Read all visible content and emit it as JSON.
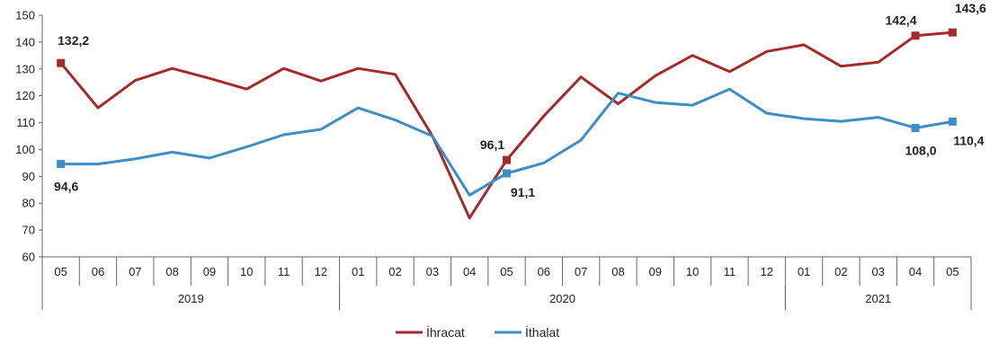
{
  "chart_data": {
    "type": "line",
    "categories": [
      "05",
      "06",
      "07",
      "08",
      "09",
      "10",
      "11",
      "12",
      "01",
      "02",
      "03",
      "04",
      "05",
      "06",
      "07",
      "08",
      "09",
      "10",
      "11",
      "12",
      "01",
      "02",
      "03",
      "04",
      "05"
    ],
    "years": [
      {
        "label": "2019",
        "from": 0,
        "to": 7
      },
      {
        "label": "2020",
        "from": 8,
        "to": 19
      },
      {
        "label": "2021",
        "from": 20,
        "to": 24
      }
    ],
    "series": [
      {
        "name": "İhracat",
        "color": "#a52a2a",
        "values": [
          132.2,
          115.5,
          125.7,
          130.2,
          126.5,
          122.5,
          130.2,
          125.5,
          130.2,
          128.0,
          105.0,
          74.5,
          96.1,
          112.5,
          127.0,
          117.0,
          127.5,
          135.0,
          129.0,
          136.5,
          139.0,
          131.0,
          132.5,
          142.4,
          143.6
        ],
        "markers": [
          0,
          12,
          23,
          24
        ]
      },
      {
        "name": "İthalat",
        "color": "#3d8ec4",
        "values": [
          94.6,
          94.6,
          96.5,
          99.0,
          96.8,
          101.0,
          105.5,
          107.5,
          115.5,
          111.0,
          105.0,
          83.0,
          91.1,
          95.0,
          103.5,
          121.0,
          117.5,
          116.5,
          122.5,
          113.5,
          111.5,
          110.5,
          112.0,
          108.0,
          110.4
        ],
        "markers": [
          0,
          12,
          23,
          24
        ]
      }
    ],
    "data_labels": [
      {
        "series": 0,
        "index": 0,
        "text": "132,2",
        "pos": "above"
      },
      {
        "series": 0,
        "index": 12,
        "text": "96,1",
        "pos": "above-left"
      },
      {
        "series": 0,
        "index": 23,
        "text": "142,4",
        "pos": "above-left"
      },
      {
        "series": 0,
        "index": 24,
        "text": "143,6",
        "pos": "above-right"
      },
      {
        "series": 1,
        "index": 0,
        "text": "94,6",
        "pos": "below"
      },
      {
        "series": 1,
        "index": 12,
        "text": "91,1",
        "pos": "below-right"
      },
      {
        "series": 1,
        "index": 23,
        "text": "108,0",
        "pos": "below"
      },
      {
        "series": 1,
        "index": 24,
        "text": "110,4",
        "pos": "below-right"
      }
    ],
    "ylim": [
      60,
      150
    ],
    "yticks": [
      60,
      70,
      80,
      90,
      100,
      110,
      120,
      130,
      140,
      150
    ],
    "title": "",
    "xlabel": "",
    "ylabel": "",
    "grid": false,
    "legend": "bottom-center"
  }
}
